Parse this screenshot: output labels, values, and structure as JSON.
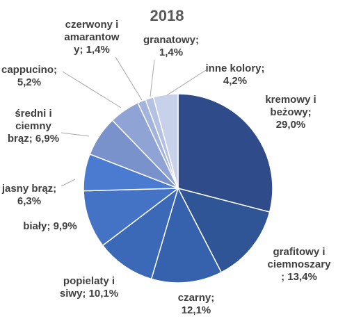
{
  "chart_data": {
    "type": "pie",
    "title": "2018",
    "slices": [
      {
        "label": "kremowy i beżowy",
        "value": 29.0,
        "text": "29,0%",
        "color": "#2f4b8a"
      },
      {
        "label": "grafitowy i ciemnoszary",
        "value": 13.4,
        "text": "13,4%",
        "color": "#2f5597"
      },
      {
        "label": "czarny",
        "value": 12.1,
        "text": "12,1%",
        "color": "#3561ad"
      },
      {
        "label": "popielaty i siwy",
        "value": 10.1,
        "text": "10,1%",
        "color": "#3b69b8"
      },
      {
        "label": "biały",
        "value": 9.9,
        "text": "9,9%",
        "color": "#4472c4"
      },
      {
        "label": "jasny brąz",
        "value": 6.3,
        "text": "6,3%",
        "color": "#4a7bd0"
      },
      {
        "label": "średni i ciemny brąz",
        "value": 6.9,
        "text": "6,9%",
        "color": "#7a92cc"
      },
      {
        "label": "cappucino",
        "value": 5.2,
        "text": "5,2%",
        "color": "#8fa3d4"
      },
      {
        "label": "czerwony i amarantowy",
        "value": 1.4,
        "text": "1,4%",
        "color": "#a3b3dc"
      },
      {
        "label": "granatowy",
        "value": 1.4,
        "text": "1,4%",
        "color": "#b4c1e2"
      },
      {
        "label": "inne kolory",
        "value": 4.2,
        "text": "4,2%",
        "color": "#c8d1ea"
      }
    ],
    "legend": "none",
    "data_labels": "outside-with-leader-lines"
  },
  "labels": [
    {
      "lines": [
        "kremowy i",
        "beżowy;",
        "29,0%"
      ]
    },
    {
      "lines": [
        "grafitowy i",
        "ciemnoszary",
        "; 13,4%"
      ]
    },
    {
      "lines": [
        "czarny;",
        "12,1%"
      ]
    },
    {
      "lines": [
        "popielaty i",
        "siwy; 10,1%"
      ]
    },
    {
      "lines": [
        "biały; 9,9%"
      ]
    },
    {
      "lines": [
        "jasny brąz;",
        "6,3%"
      ]
    },
    {
      "lines": [
        "średni i",
        "ciemny",
        "brąz; 6,9%"
      ]
    },
    {
      "lines": [
        "cappucino;",
        "5,2%"
      ]
    },
    {
      "lines": [
        "czerwony i",
        "amarantow",
        "y; 1,4%"
      ]
    },
    {
      "lines": [
        "granatowy;",
        "1,4%"
      ]
    },
    {
      "lines": [
        "inne kolory;",
        "4,2%"
      ]
    }
  ]
}
